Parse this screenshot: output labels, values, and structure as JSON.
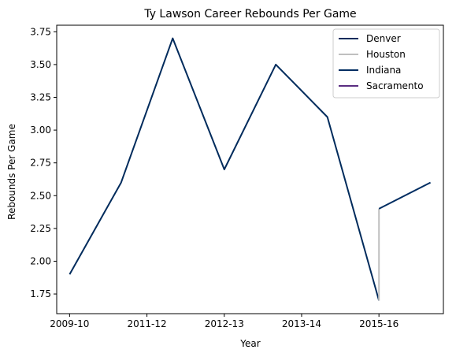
{
  "chart_data": {
    "type": "line",
    "title": "Ty Lawson Career Rebounds Per Game",
    "xlabel": "Year",
    "ylabel": "Rebounds Per Game",
    "x_tick_labels": [
      "2009-10",
      "2011-12",
      "2012-13",
      "2013-14",
      "2015-16"
    ],
    "y_ticks": [
      "1.75",
      "2.00",
      "2.25",
      "2.50",
      "2.75",
      "3.00",
      "3.25",
      "3.50",
      "3.75"
    ],
    "xlim": [
      -0.25,
      7.25
    ],
    "ylim": [
      1.6,
      3.8
    ],
    "grid": false,
    "legend": "top-right",
    "series": [
      {
        "name": "Denver",
        "color": "#002b5c",
        "x": [
          0,
          1,
          2,
          3,
          4,
          5,
          6
        ],
        "values": [
          1.9,
          2.6,
          3.7,
          2.7,
          3.5,
          3.1,
          1.7
        ]
      },
      {
        "name": "Houston",
        "color": "#bfbfbf",
        "x": [
          6,
          6
        ],
        "values": [
          1.7,
          2.4
        ]
      },
      {
        "name": "Indiana",
        "color": "#002d62",
        "x": [
          6,
          7
        ],
        "values": [
          2.4,
          2.6
        ]
      },
      {
        "name": "Sacramento",
        "color": "#5a2d81",
        "x": [],
        "values": []
      }
    ]
  }
}
